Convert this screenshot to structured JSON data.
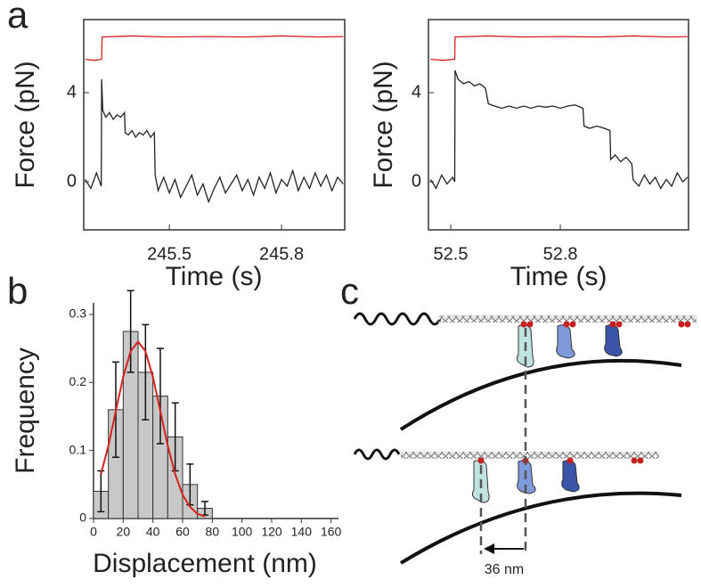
{
  "panel_labels": [
    "a",
    "b",
    "c"
  ],
  "chart_data": [
    {
      "type": "line",
      "y_label": "Force (pN)",
      "x_label": "Time (s)",
      "xlim": [
        245.271,
        245.969
      ],
      "ylim": [
        -2.16,
        7.28
      ],
      "xticks": [
        245.5,
        245.8
      ],
      "yticks": [
        0,
        4
      ],
      "series": [
        {
          "color": "#d62020",
          "x": [
            245.275,
            245.3,
            245.319,
            245.32,
            245.4,
            245.5,
            245.6,
            245.7,
            245.8,
            245.9,
            245.965
          ],
          "values": [
            5.5,
            5.45,
            5.5,
            6.5,
            6.55,
            6.5,
            6.52,
            6.5,
            6.55,
            6.5,
            6.52
          ]
        },
        {
          "color": "#222222",
          "x": [
            245.275,
            245.29,
            245.305,
            245.318,
            245.319,
            245.322,
            245.33,
            245.34,
            245.35,
            245.36,
            245.37,
            245.38,
            245.382,
            245.39,
            245.4,
            245.41,
            245.42,
            245.43,
            245.44,
            245.45,
            245.46,
            245.462,
            245.47,
            245.485,
            245.5,
            245.515,
            245.53,
            245.545,
            245.56,
            245.575,
            245.59,
            245.605,
            245.62,
            245.635,
            245.65,
            245.665,
            245.68,
            245.695,
            245.71,
            245.725,
            245.74,
            245.755,
            245.77,
            245.785,
            245.8,
            245.815,
            245.83,
            245.845,
            245.86,
            245.875,
            245.89,
            245.905,
            245.92,
            245.935,
            245.95,
            245.965
          ],
          "values": [
            0.1,
            -0.3,
            0.4,
            -0.2,
            4.6,
            3.2,
            2.9,
            3.1,
            2.8,
            3.0,
            2.9,
            3.1,
            2.2,
            2.1,
            2.3,
            2.0,
            2.2,
            2.1,
            2.3,
            2.0,
            2.2,
            0.3,
            -0.4,
            0.2,
            -0.5,
            0.1,
            -0.7,
            -0.2,
            0.3,
            -0.6,
            -0.1,
            -0.9,
            -0.3,
            0.2,
            -0.5,
            -0.1,
            0.3,
            -0.4,
            0.1,
            -0.6,
            0.2,
            -0.3,
            0.4,
            -0.5,
            0.1,
            -0.2,
            0.5,
            -0.4,
            0.2,
            -0.3,
            0.4,
            -0.2,
            0.3,
            -0.4,
            0.2,
            -0.1
          ]
        }
      ]
    },
    {
      "type": "line",
      "y_label": "Force (pN)",
      "x_label": "Time (s)",
      "xlim": [
        52.439,
        53.151
      ],
      "ylim": [
        -2.16,
        7.28
      ],
      "xticks": [
        52.5,
        52.8
      ],
      "yticks": [
        0,
        4
      ],
      "series": [
        {
          "color": "#d62020",
          "x": [
            52.445,
            52.48,
            52.511,
            52.512,
            52.6,
            52.7,
            52.8,
            52.9,
            53.0,
            53.1,
            53.148
          ],
          "values": [
            5.5,
            5.45,
            5.5,
            6.5,
            6.55,
            6.5,
            6.52,
            6.5,
            6.55,
            6.5,
            6.52
          ]
        },
        {
          "color": "#222222",
          "x": [
            52.445,
            52.46,
            52.475,
            52.49,
            52.505,
            52.511,
            52.512,
            52.52,
            52.535,
            52.55,
            52.565,
            52.58,
            52.595,
            52.603,
            52.62,
            52.64,
            52.66,
            52.68,
            52.7,
            52.72,
            52.74,
            52.76,
            52.78,
            52.8,
            52.82,
            52.84,
            52.862,
            52.865,
            52.88,
            52.9,
            52.92,
            52.936,
            52.938,
            52.95,
            52.965,
            52.98,
            52.996,
            52.999,
            53.015,
            53.03,
            53.045,
            53.06,
            53.075,
            53.09,
            53.105,
            53.12,
            53.135,
            53.148
          ],
          "values": [
            0.1,
            -0.3,
            0.3,
            -0.1,
            0.2,
            0,
            5.0,
            4.6,
            4.4,
            4.5,
            4.3,
            4.4,
            4.2,
            3.5,
            3.4,
            3.3,
            3.4,
            3.3,
            3.4,
            3.3,
            3.4,
            3.35,
            3.4,
            3.3,
            3.4,
            3.45,
            3.3,
            2.5,
            2.4,
            2.5,
            2.4,
            2.3,
            1.0,
            1.2,
            0.9,
            1.1,
            0.8,
            0.1,
            -0.2,
            0.3,
            -0.1,
            0.2,
            -0.3,
            0.1,
            -0.2,
            0.4,
            0,
            0.2
          ]
        }
      ]
    },
    {
      "type": "histogram",
      "y_label": "Frequency",
      "x_label": "Displacement (nm)",
      "xlim": [
        0,
        165
      ],
      "ylim": [
        0,
        0.317
      ],
      "xticks": [
        0,
        20,
        40,
        60,
        80,
        100,
        120,
        140,
        160
      ],
      "yticks": [
        0,
        0.1,
        0.2,
        0.3
      ],
      "bins": [
        0,
        10,
        20,
        30,
        40,
        50,
        60,
        70,
        80
      ],
      "values": [
        0.04,
        0.16,
        0.275,
        0.215,
        0.18,
        0.12,
        0.05,
        0.015
      ],
      "errors": [
        0.03,
        0.07,
        0.06,
        0.07,
        0.07,
        0.05,
        0.03,
        0.01
      ],
      "color": "#c8c8c8",
      "fit": {
        "color": "#d62020",
        "x": [
          5,
          10,
          15,
          20,
          25,
          30,
          35,
          40,
          45,
          50,
          55,
          60,
          65,
          70,
          75
        ],
        "values": [
          0.065,
          0.107,
          0.158,
          0.208,
          0.246,
          0.26,
          0.246,
          0.208,
          0.158,
          0.107,
          0.065,
          0.035,
          0.017,
          0.007,
          0.003
        ]
      }
    }
  ],
  "diagram": {
    "scale_label": "36 nm"
  }
}
